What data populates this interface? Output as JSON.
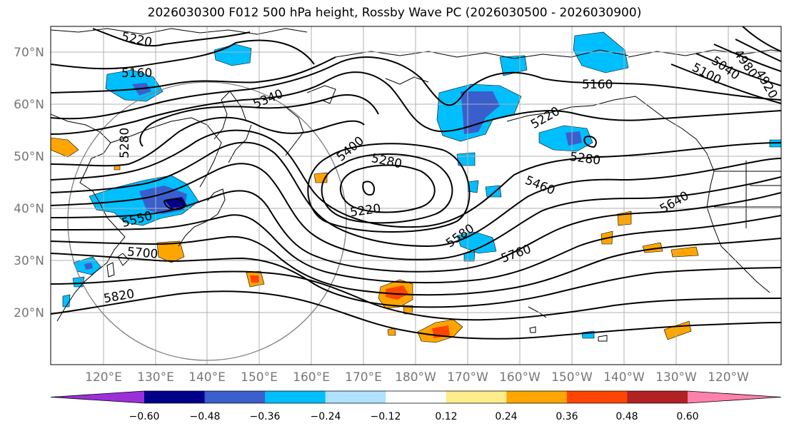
{
  "title": "2026030300 F012 500 hPa height, Rossby Wave PC (2026030500 - 2026030900)",
  "lat_labels": [
    "70°N",
    "60°N",
    "50°N",
    "40°N",
    "30°N",
    "20°N"
  ],
  "lon_labels": [
    "120°E",
    "130°E",
    "140°E",
    "150°E",
    "160°E",
    "170°E",
    "180°W",
    "170°W",
    "160°W",
    "150°W",
    "140°W",
    "130°W",
    "120°W"
  ],
  "contour_labels": [
    "5220",
    "5160",
    "5340",
    "5400",
    "5280",
    "5220",
    "5160",
    "5100",
    "5040",
    "4980",
    "4920",
    "5220",
    "5280",
    "5460",
    "5640",
    "5580",
    "5760",
    "5700",
    "5820",
    "5550",
    "5280"
  ],
  "colorbar": {
    "ticks": [
      "−0.60",
      "−0.48",
      "−0.36",
      "−0.24",
      "−0.12",
      "0.12",
      "0.24",
      "0.36",
      "0.48",
      "0.60"
    ],
    "colors": [
      "#9b30d9",
      "#00008b",
      "#3a5fcd",
      "#00bfff",
      "#b0e2ff",
      "#ffffff",
      "#ffec8b",
      "#ffa500",
      "#ff4500",
      "#b22222",
      "#ff82ab"
    ]
  }
}
